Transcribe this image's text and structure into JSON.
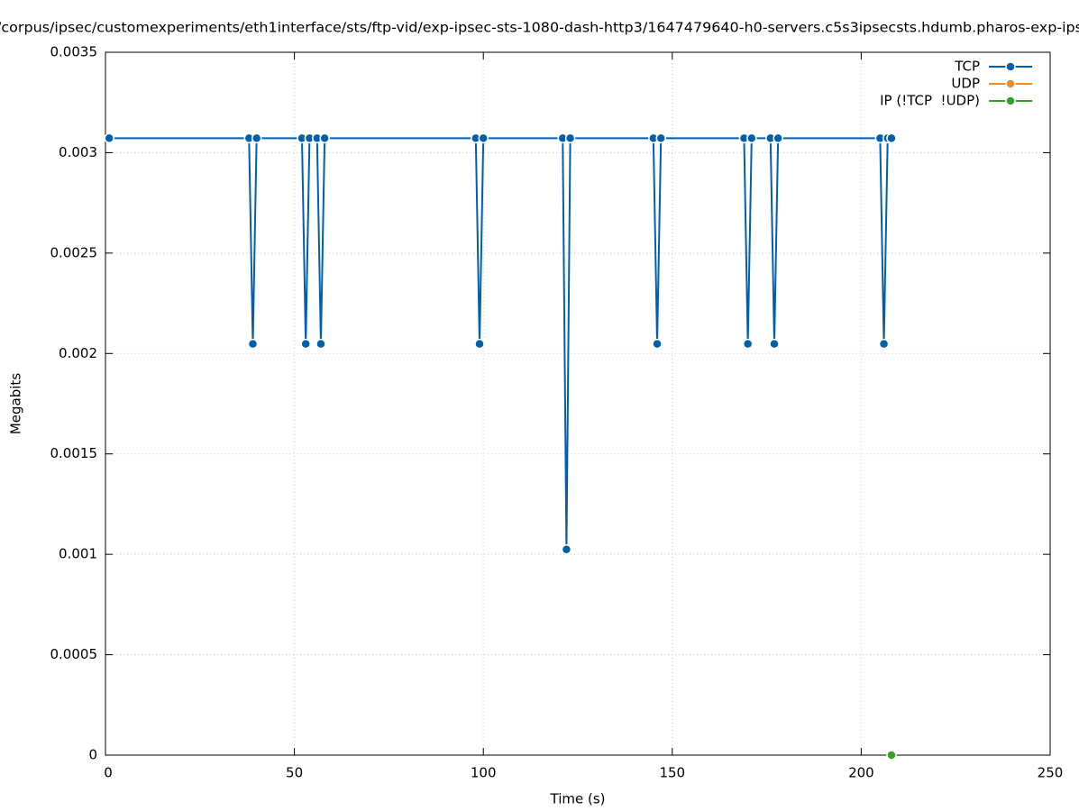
{
  "chart_data": {
    "type": "line",
    "title": "/corpus/ipsec/customexperiments/eth1interface/sts/ftp-vid/exp-ipsec-sts-1080-dash-http3/1647479640-h0-servers.c5s3ipsecsts.hdumb.pharos-exp-ips",
    "x_label": "Time (s)",
    "y_label": "Megabits",
    "xlim": [
      0,
      250
    ],
    "xticks": [
      0,
      50,
      100,
      150,
      200,
      250
    ],
    "ylim": [
      0,
      0.0035
    ],
    "yticks": [
      0,
      0.0005,
      0.001,
      0.0015,
      0.002,
      0.0025,
      0.003,
      0.0035
    ],
    "grid": true,
    "legend": "top-right",
    "series": [
      {
        "name": "TCP",
        "color": "#0060ad",
        "x": [
          1,
          2,
          3,
          4,
          5,
          6,
          7,
          8,
          9,
          10,
          11,
          12,
          13,
          14,
          15,
          16,
          17,
          18,
          19,
          20,
          21,
          22,
          23,
          24,
          25,
          26,
          27,
          28,
          29,
          30,
          31,
          32,
          33,
          34,
          35,
          36,
          37,
          38,
          39,
          40,
          41,
          42,
          43,
          44,
          45,
          46,
          47,
          48,
          49,
          50,
          51,
          52,
          53,
          54,
          55,
          56,
          57,
          58,
          59,
          60,
          61,
          62,
          63,
          64,
          65,
          66,
          67,
          68,
          69,
          70,
          71,
          72,
          73,
          74,
          75,
          76,
          77,
          78,
          79,
          80,
          81,
          82,
          83,
          84,
          85,
          86,
          87,
          88,
          89,
          90,
          91,
          92,
          93,
          94,
          95,
          96,
          97,
          98,
          99,
          100,
          101,
          102,
          103,
          104,
          105,
          106,
          107,
          108,
          109,
          110,
          111,
          112,
          113,
          114,
          115,
          116,
          117,
          118,
          119,
          120,
          121,
          122,
          123,
          124,
          125,
          126,
          127,
          128,
          129,
          130,
          131,
          132,
          133,
          134,
          135,
          136,
          137,
          138,
          139,
          140,
          141,
          142,
          143,
          144,
          145,
          146,
          147,
          148,
          149,
          150,
          151,
          152,
          153,
          154,
          155,
          156,
          157,
          158,
          159,
          160,
          161,
          162,
          163,
          164,
          165,
          166,
          167,
          168,
          169,
          170,
          171,
          172,
          173,
          174,
          175,
          176,
          177,
          178,
          179,
          180,
          181,
          182,
          183,
          184,
          185,
          186,
          187,
          188,
          189,
          190,
          191,
          192,
          193,
          194,
          195,
          196,
          197,
          198,
          199,
          200,
          201,
          202,
          203,
          204,
          205,
          206,
          207,
          208
        ],
        "values": [
          0.003072,
          0.003072,
          0.003072,
          0.003072,
          0.003072,
          0.003072,
          0.003072,
          0.003072,
          0.003072,
          0.003072,
          0.003072,
          0.003072,
          0.003072,
          0.003072,
          0.003072,
          0.003072,
          0.003072,
          0.003072,
          0.003072,
          0.003072,
          0.003072,
          0.003072,
          0.003072,
          0.003072,
          0.003072,
          0.003072,
          0.003072,
          0.003072,
          0.003072,
          0.003072,
          0.003072,
          0.003072,
          0.003072,
          0.003072,
          0.003072,
          0.003072,
          0.003072,
          0.003072,
          0.002048,
          0.003072,
          0.003072,
          0.003072,
          0.003072,
          0.003072,
          0.003072,
          0.003072,
          0.003072,
          0.003072,
          0.003072,
          0.003072,
          0.003072,
          0.003072,
          0.002048,
          0.003072,
          0.003072,
          0.003072,
          0.002048,
          0.003072,
          0.003072,
          0.003072,
          0.003072,
          0.003072,
          0.003072,
          0.003072,
          0.003072,
          0.003072,
          0.003072,
          0.003072,
          0.003072,
          0.003072,
          0.003072,
          0.003072,
          0.003072,
          0.003072,
          0.003072,
          0.003072,
          0.003072,
          0.003072,
          0.003072,
          0.003072,
          0.003072,
          0.003072,
          0.003072,
          0.003072,
          0.003072,
          0.003072,
          0.003072,
          0.003072,
          0.003072,
          0.003072,
          0.003072,
          0.003072,
          0.003072,
          0.003072,
          0.003072,
          0.003072,
          0.003072,
          0.003072,
          0.002048,
          0.003072,
          0.003072,
          0.003072,
          0.003072,
          0.003072,
          0.003072,
          0.003072,
          0.003072,
          0.003072,
          0.003072,
          0.003072,
          0.003072,
          0.003072,
          0.003072,
          0.003072,
          0.003072,
          0.003072,
          0.003072,
          0.003072,
          0.003072,
          0.003072,
          0.003072,
          0.001024,
          0.003072,
          0.003072,
          0.003072,
          0.003072,
          0.003072,
          0.003072,
          0.003072,
          0.003072,
          0.003072,
          0.003072,
          0.003072,
          0.003072,
          0.003072,
          0.003072,
          0.003072,
          0.003072,
          0.003072,
          0.003072,
          0.003072,
          0.003072,
          0.003072,
          0.003072,
          0.003072,
          0.002048,
          0.003072,
          0.003072,
          0.003072,
          0.003072,
          0.003072,
          0.003072,
          0.003072,
          0.003072,
          0.003072,
          0.003072,
          0.003072,
          0.003072,
          0.003072,
          0.003072,
          0.003072,
          0.003072,
          0.003072,
          0.003072,
          0.003072,
          0.003072,
          0.003072,
          0.003072,
          0.003072,
          0.002048,
          0.003072,
          0.003072,
          0.003072,
          0.003072,
          0.003072,
          0.003072,
          0.002048,
          0.003072,
          0.003072,
          0.003072,
          0.003072,
          0.003072,
          0.003072,
          0.003072,
          0.003072,
          0.003072,
          0.003072,
          0.003072,
          0.003072,
          0.003072,
          0.003072,
          0.003072,
          0.003072,
          0.003072,
          0.003072,
          0.003072,
          0.003072,
          0.003072,
          0.003072,
          0.003072,
          0.003072,
          0.003072,
          0.003072,
          0.003072,
          0.003072,
          0.002048,
          0.003072,
          0.003072
        ]
      },
      {
        "name": "UDP",
        "color": "#f28c1e",
        "x": [],
        "values": []
      },
      {
        "name": "IP (!TCP  !UDP)",
        "color": "#33a02c",
        "x": [
          208
        ],
        "values": [
          0
        ]
      }
    ]
  }
}
